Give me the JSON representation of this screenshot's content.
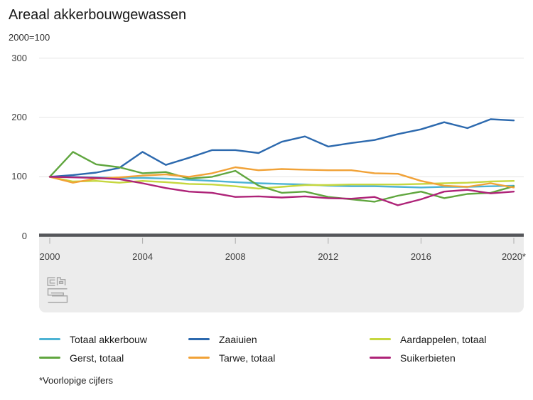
{
  "title": "Areaal akkerbouwgewassen",
  "subtitle": "2000=100",
  "footnote": "*Voorlopige cijfers",
  "logo": "cbs",
  "colors": {
    "grid": "#e4e4e4",
    "axis_bar": "#55565a",
    "tick": "#ababab",
    "band": "#ececec",
    "logo_gray": "#a8a8a8"
  },
  "chart_data": {
    "type": "line",
    "title": "Areaal akkerbouwgewassen",
    "index_note": "2000=100",
    "xlabel": "",
    "ylabel": "",
    "ylim": [
      0,
      300
    ],
    "y_ticks": [
      0,
      100,
      200,
      300
    ],
    "grid": true,
    "legend_position": "bottom",
    "x": [
      2000,
      2001,
      2002,
      2003,
      2004,
      2005,
      2006,
      2007,
      2008,
      2009,
      2010,
      2011,
      2012,
      2013,
      2014,
      2015,
      2016,
      2017,
      2018,
      2019,
      2020
    ],
    "x_tick_years": [
      2000,
      2004,
      2008,
      2012,
      2016,
      2020
    ],
    "x_tick_labels": [
      "2000",
      "2004",
      "2008",
      "2012",
      "2016",
      "2020*"
    ],
    "series": [
      {
        "name": "Totaal akkerbouw",
        "color": "#4db3d4",
        "values": [
          100,
          100,
          99,
          98,
          98,
          97,
          95,
          93,
          91,
          89,
          88,
          87,
          85,
          84,
          84,
          83,
          82,
          83,
          83,
          84,
          85
        ]
      },
      {
        "name": "Zaaiuien",
        "color": "#2c69ae",
        "values": [
          100,
          103,
          107,
          115,
          142,
          120,
          132,
          145,
          145,
          140,
          159,
          168,
          151,
          157,
          162,
          172,
          180,
          192,
          182,
          197,
          195
        ]
      },
      {
        "name": "Aardappelen, totaal",
        "color": "#c6d73f",
        "values": [
          100,
          92,
          93,
          90,
          93,
          91,
          88,
          87,
          84,
          80,
          83,
          86,
          86,
          87,
          87,
          87,
          88,
          89,
          90,
          92,
          93
        ]
      },
      {
        "name": "Gerst, totaal",
        "color": "#60a63f",
        "values": [
          100,
          142,
          121,
          116,
          106,
          108,
          97,
          100,
          110,
          85,
          73,
          75,
          66,
          62,
          58,
          68,
          75,
          64,
          71,
          73,
          84
        ]
      },
      {
        "name": "Tarwe, totaal",
        "color": "#f1a237",
        "values": [
          100,
          90,
          97,
          99,
          102,
          104,
          100,
          106,
          116,
          111,
          113,
          112,
          111,
          111,
          106,
          105,
          93,
          85,
          83,
          89,
          82
        ]
      },
      {
        "name": "Suikerbieten",
        "color": "#ae2378",
        "values": [
          100,
          99,
          98,
          96,
          89,
          81,
          75,
          73,
          66,
          67,
          65,
          67,
          64,
          63,
          66,
          52,
          62,
          75,
          78,
          72,
          75
        ]
      }
    ]
  }
}
